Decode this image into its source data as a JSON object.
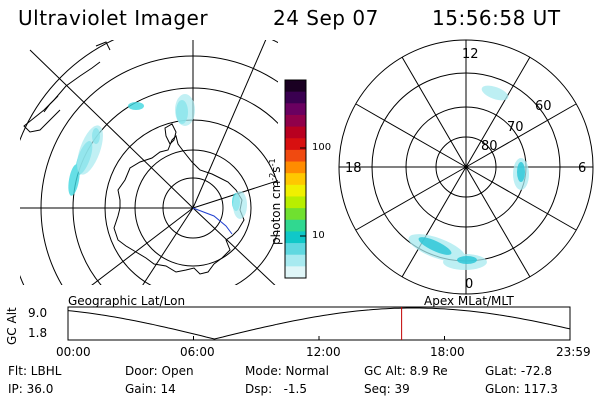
{
  "header": {
    "title": "Ultraviolet Imager",
    "date": "24 Sep 07",
    "time": "15:56:58 UT"
  },
  "left_map": {
    "label": "Geographic Lat/Lon"
  },
  "right_map": {
    "label": "Apex MLat/MLT",
    "mlt_labels": [
      "12",
      "18",
      "6",
      "0"
    ],
    "mlat_labels": [
      "60",
      "70",
      "80"
    ]
  },
  "colorbar": {
    "label_main": "photon cm",
    "label_sup1": "-2",
    "label_mid": "s",
    "label_sup2": "-1",
    "ticks": [
      "100",
      "10"
    ],
    "colors_top_to_bottom": [
      "#1a0022",
      "#3a0050",
      "#6a0060",
      "#90004a",
      "#b80020",
      "#d81010",
      "#f04a10",
      "#ff8c00",
      "#ffc800",
      "#f0f000",
      "#b8ee00",
      "#70e030",
      "#30d890",
      "#10c8c8",
      "#60d8e0",
      "#a8eaf0",
      "#e0f6f8"
    ]
  },
  "timeline": {
    "ylabel": "GC Alt",
    "ytick_top": "9.0",
    "ytick_bottom": "1.8",
    "xticks": [
      "00:00",
      "06:00",
      "12:00",
      "18:00",
      "23:59"
    ],
    "marker_time_hours": 15.95,
    "marker_color": "#c00000"
  },
  "info": {
    "filter": "Flt: LBHL",
    "ip": "IP: 36.0",
    "door": "Door: Open",
    "gain": "Gain: 14",
    "mode": "Mode: Normal",
    "dsp": "Dsp:   -1.5",
    "gc_alt": "GC Alt: 8.9 Re",
    "seq": "Seq: 39",
    "glat": "GLat: -72.8",
    "glon": "GLon: 117.3"
  }
}
